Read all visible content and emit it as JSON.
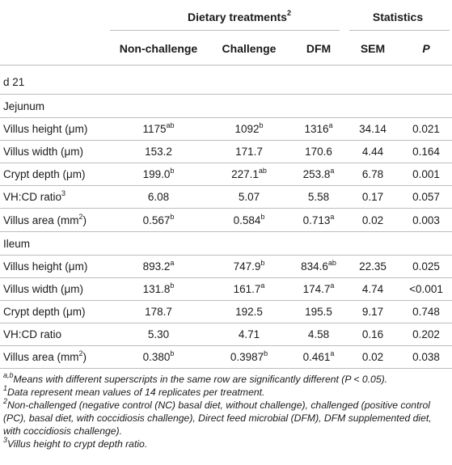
{
  "header": {
    "group1": "Dietary treatments",
    "group1_sup": "2",
    "group2": "Statistics",
    "columns": [
      "Non-challenge",
      "Challenge",
      "DFM",
      "SEM",
      "P"
    ]
  },
  "sections": [
    {
      "label": "d 21"
    },
    {
      "label": "Jejunum"
    }
  ],
  "jejunum": [
    {
      "label": "Villus height (μm)",
      "label_sup": "",
      "nc": "1175",
      "nc_sup": "ab",
      "ch": "1092",
      "ch_sup": "b",
      "dfm": "1316",
      "dfm_sup": "a",
      "sem": "34.14",
      "p": "0.021"
    },
    {
      "label": "Villus width (μm)",
      "label_sup": "",
      "nc": "153.2",
      "nc_sup": "",
      "ch": "171.7",
      "ch_sup": "",
      "dfm": "170.6",
      "dfm_sup": "",
      "sem": "4.44",
      "p": "0.164"
    },
    {
      "label": "Crypt depth (μm)",
      "label_sup": "",
      "nc": "199.0",
      "nc_sup": "b",
      "ch": "227.1",
      "ch_sup": "ab",
      "dfm": "253.8",
      "dfm_sup": "a",
      "sem": "6.78",
      "p": "0.001"
    },
    {
      "label": "VH:CD ratio",
      "label_sup": "3",
      "nc": "6.08",
      "nc_sup": "",
      "ch": "5.07",
      "ch_sup": "",
      "dfm": "5.58",
      "dfm_sup": "",
      "sem": "0.17",
      "p": "0.057"
    },
    {
      "label": "Villus area (mm",
      "label_sup": "2",
      "label_tail": ")",
      "nc": "0.567",
      "nc_sup": "b",
      "ch": "0.584",
      "ch_sup": "b",
      "dfm": "0.713",
      "dfm_sup": "a",
      "sem": "0.02",
      "p": "0.003"
    }
  ],
  "ileum_label": "Ileum",
  "ileum": [
    {
      "label": "Villus height (μm)",
      "nc": "893.2",
      "nc_sup": "a",
      "ch": "747.9",
      "ch_sup": "b",
      "dfm": "834.6",
      "dfm_sup": "ab",
      "sem": "22.35",
      "p": "0.025"
    },
    {
      "label": "Villus width (μm)",
      "nc": "131.8",
      "nc_sup": "b",
      "ch": "161.7",
      "ch_sup": "a",
      "dfm": "174.7",
      "dfm_sup": "a",
      "sem": "4.74",
      "p": "<0.001"
    },
    {
      "label": "Crypt depth (μm)",
      "nc": "178.7",
      "nc_sup": "",
      "ch": "192.5",
      "ch_sup": "",
      "dfm": "195.5",
      "dfm_sup": "",
      "sem": "9.17",
      "p": "0.748"
    },
    {
      "label": "VH:CD ratio",
      "nc": "5.30",
      "nc_sup": "",
      "ch": "4.71",
      "ch_sup": "",
      "dfm": "4.58",
      "dfm_sup": "",
      "sem": "0.16",
      "p": "0.202"
    },
    {
      "label": "Villus area (mm",
      "label_sup": "2",
      "label_tail": ")",
      "nc": "0.380",
      "nc_sup": "b",
      "ch": "0.3987",
      "ch_sup": "b",
      "dfm": "0.461",
      "dfm_sup": "a",
      "sem": "0.02",
      "p": "0.038"
    }
  ],
  "footnotes": {
    "fn1_sup": "a,b",
    "fn1": "Means with different superscripts in the same row are significantly different (P < 0.05).",
    "fn2_sup": "1",
    "fn2": "Data represent mean values of 14 replicates per treatment.",
    "fn3_sup": "2",
    "fn3": "Non-challenged (negative control (NC) basal diet, without challenge), challenged (positive control (PC), basal diet, with coccidiosis challenge), Direct feed microbial (DFM), DFM supplemented diet, with coccidiosis challenge).",
    "fn4_sup": "3",
    "fn4": "Villus height to crypt depth ratio."
  }
}
